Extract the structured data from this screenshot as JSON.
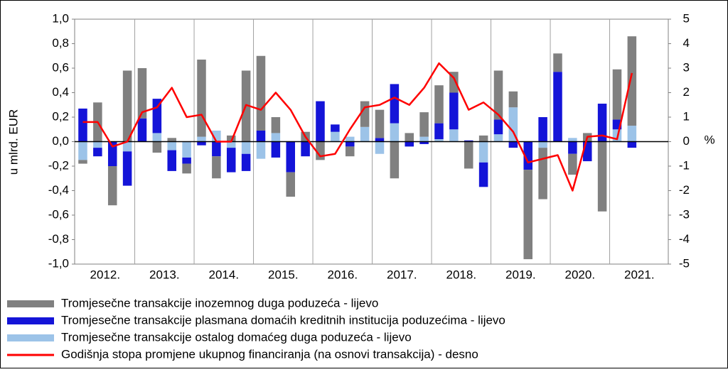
{
  "chart_data": {
    "type": "bar-line",
    "y_label": "u mlrd. EUR",
    "y2_label": "%",
    "categories": [
      null,
      "2012.",
      null,
      null,
      null,
      "2013.",
      null,
      null,
      null,
      "2014.",
      null,
      null,
      null,
      "2015.",
      null,
      null,
      null,
      "2016.",
      null,
      null,
      null,
      "2017.",
      null,
      null,
      null,
      "2018.",
      null,
      null,
      null,
      "2019.",
      null,
      null,
      null,
      "2020.",
      null,
      null,
      null,
      "2021."
    ],
    "series": [
      {
        "name": "Tromjesečne transakcije inozemnog duga poduzeća - lijevo",
        "color": "#808080",
        "values": [
          -0.03,
          0.32,
          -0.32,
          0.58,
          0.41,
          -0.09,
          0.03,
          -0.08,
          0.63,
          -0.18,
          0.05,
          0.58,
          0.61,
          0.13,
          -0.2,
          0.08,
          -0.15,
          0,
          -0.08,
          0.21,
          0.23,
          -0.3,
          0.07,
          0.2,
          0.31,
          0.17,
          -0.22,
          0.05,
          0.4,
          0.13,
          -0.73,
          -0.42,
          0.15,
          -0.17,
          0.07,
          -0.57,
          0.41,
          0.73
        ]
      },
      {
        "name": "Tromjesečne transakcije plasmana domaćih kreditnih institucija poduzećima - lijevo",
        "color": "#1414d8",
        "values": [
          0.27,
          -0.07,
          -0.2,
          -0.28,
          0.19,
          0.28,
          -0.17,
          -0.05,
          -0.03,
          -0.12,
          -0.2,
          -0.14,
          0.09,
          -0.13,
          -0.25,
          -0.12,
          0.33,
          0.06,
          -0.04,
          0,
          0.03,
          0.32,
          -0.04,
          -0.02,
          0.13,
          0.3,
          0.01,
          -0.2,
          0.12,
          -0.05,
          -0.23,
          0.2,
          0.57,
          -0.1,
          -0.16,
          0.31,
          0.08,
          -0.05
        ]
      },
      {
        "name": "Tromjesečne transakcije ostalog domaćeg duga poduzeća - lijevo",
        "color": "#9cc3e8",
        "values": [
          -0.15,
          -0.05,
          0,
          -0.08,
          0,
          0.07,
          -0.07,
          -0.13,
          0.04,
          0.09,
          -0.05,
          -0.1,
          -0.14,
          0.07,
          0,
          0,
          0,
          0.08,
          0.04,
          0.12,
          -0.1,
          0.15,
          0,
          0.04,
          0.02,
          0.1,
          0,
          -0.17,
          0.06,
          0.28,
          0,
          -0.05,
          0,
          0.03,
          0,
          0,
          0.1,
          0.13
        ]
      },
      {
        "name": "Godišnja stopa promjene ukupnog financiranja (na osnovi transakcija) - desno",
        "color": "#ff0000",
        "axis": "y2",
        "values": [
          0.8,
          0.8,
          -0.2,
          0,
          1.2,
          1.4,
          2.2,
          1.0,
          1.1,
          0,
          0,
          1.5,
          1.3,
          2.0,
          1.3,
          0.2,
          -0.6,
          -0.5,
          0.5,
          1.4,
          1.5,
          1.8,
          1.5,
          2.2,
          3.2,
          2.6,
          1.3,
          1.6,
          1.1,
          0.4,
          -0.85,
          -0.7,
          -0.55,
          -2.0,
          0.2,
          0.25,
          0.1,
          2.8
        ]
      }
    ],
    "ylim": [
      -1,
      1
    ],
    "yticks": [
      {
        "value": -1,
        "label": "-1,0"
      },
      {
        "value": -0.8,
        "label": "-0,8"
      },
      {
        "value": -0.6,
        "label": "-0,6"
      },
      {
        "value": -0.4,
        "label": "-0,4"
      },
      {
        "value": -0.2,
        "label": "-0,2"
      },
      {
        "value": 0,
        "label": "0,0"
      },
      {
        "value": 0.2,
        "label": "0,2"
      },
      {
        "value": 0.4,
        "label": "0,4"
      },
      {
        "value": 0.6,
        "label": "0,6"
      },
      {
        "value": 0.8,
        "label": "0,8"
      },
      {
        "value": 1,
        "label": "1,0"
      }
    ],
    "y2lim": [
      -5,
      5
    ],
    "y2ticks": [
      -5,
      -4,
      -3,
      -2,
      -1,
      0,
      1,
      2,
      3,
      4,
      5
    ]
  }
}
